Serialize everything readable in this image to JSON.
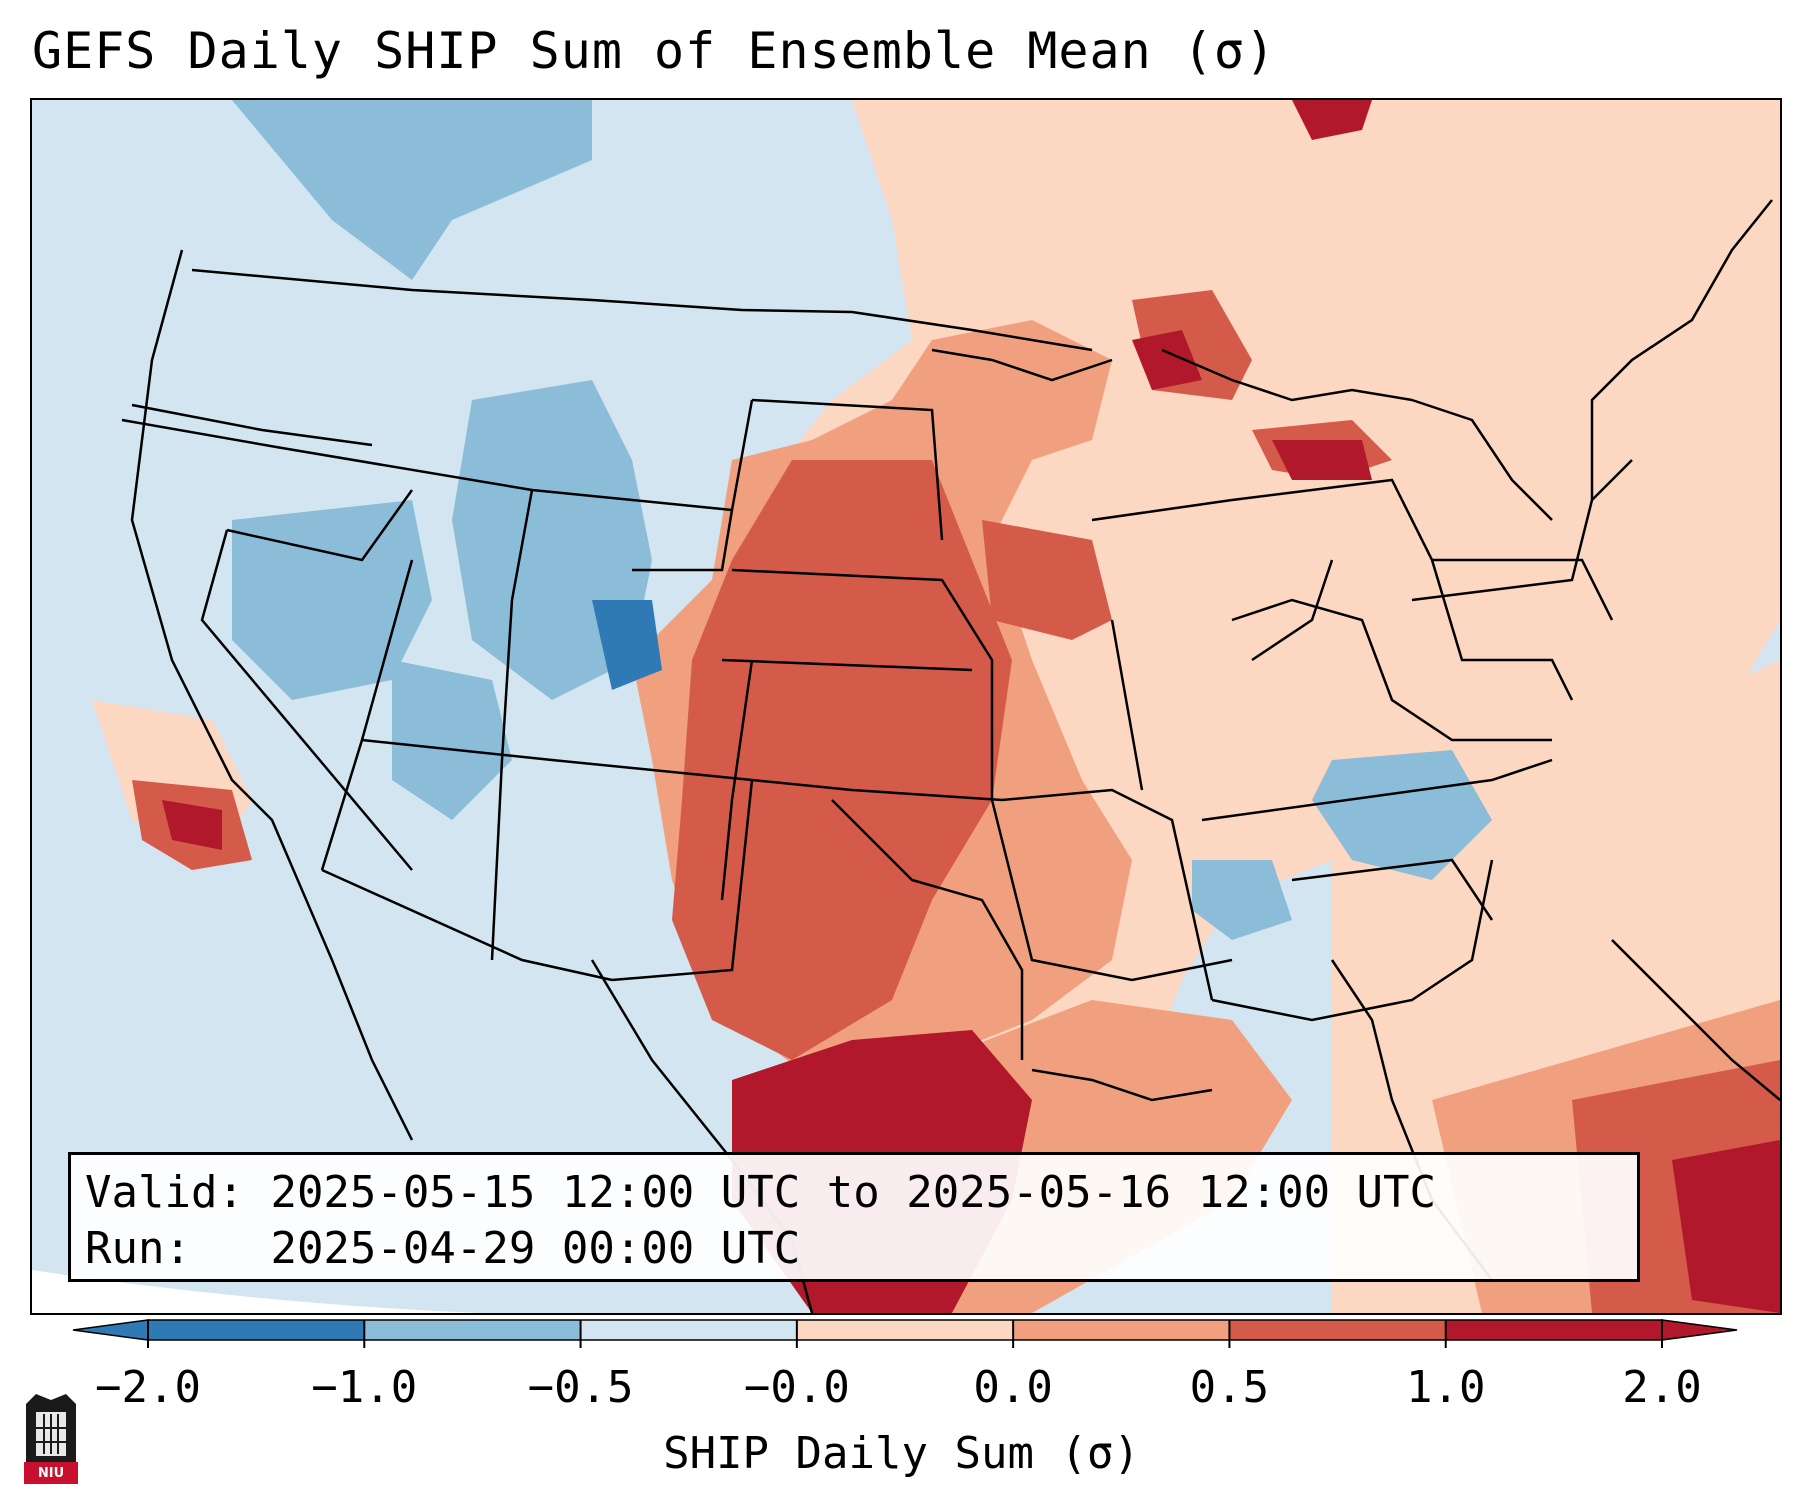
{
  "title": "GEFS Daily SHIP Sum of Ensemble Mean (σ)",
  "info": {
    "valid_label": "Valid:",
    "valid_value": "2025-05-15 12:00 UTC to 2025-05-16 12:00 UTC",
    "run_label": "Run:",
    "run_value": "2025-04-29 00:00 UTC"
  },
  "colorbar": {
    "label": "SHIP Daily Sum (σ)",
    "ticks": [
      "−2.0",
      "−1.0",
      "−0.5",
      "−0.0",
      "0.0",
      "0.5",
      "1.0",
      "2.0"
    ],
    "colors": [
      "#2f79b5",
      "#8bbcd8",
      "#d2e5f0",
      "#f7f7f7",
      "#fcd7c2",
      "#f0a07e",
      "#d45a4a",
      "#b2182b"
    ]
  },
  "colors": {
    "ocean_background": "#d2e5f0",
    "state_lines": "#000000"
  },
  "logo": {
    "text": "NIU",
    "color": "#c8102e"
  }
}
